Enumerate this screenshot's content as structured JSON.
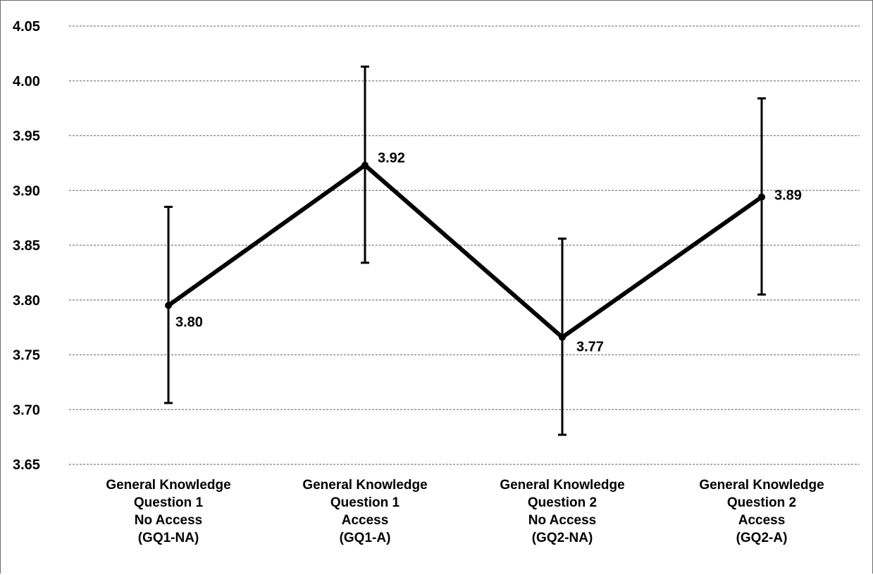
{
  "chart_data": {
    "type": "line",
    "title": "",
    "xlabel": "",
    "ylabel": "",
    "categories": [
      [
        "General Knowledge",
        "Question 1",
        "No Access",
        "(GQ1-NA)"
      ],
      [
        "General Knowledge",
        "Question 1",
        "Access",
        "(GQ1-A)"
      ],
      [
        "General Knowledge",
        "Question 2",
        "No Access",
        "(GQ2-NA)"
      ],
      [
        "General Knowledge",
        "Question 2",
        "Access",
        "(GQ2-A)"
      ]
    ],
    "series": [
      {
        "values": [
          3.795,
          3.923,
          3.766,
          3.894
        ],
        "error_low": [
          3.706,
          3.834,
          3.677,
          3.805
        ],
        "error_high": [
          3.885,
          4.013,
          3.856,
          3.984
        ],
        "data_labels": [
          "3.80",
          "3.92",
          "3.77",
          "3.89"
        ]
      }
    ],
    "ylim": [
      3.65,
      4.05
    ],
    "yticks": [
      "3.65",
      "3.70",
      "3.75",
      "3.80",
      "3.85",
      "3.90",
      "3.95",
      "4.00",
      "4.05"
    ],
    "grid": "horizontal-dashed",
    "legend": "none",
    "line_color": "#000000",
    "grid_color": "#7f7f7f"
  }
}
